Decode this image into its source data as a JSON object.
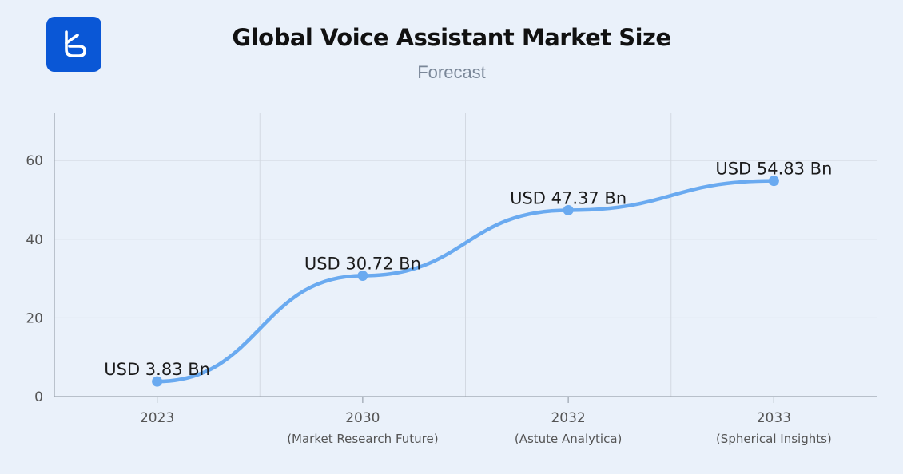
{
  "header": {
    "logo": "logo-b-icon"
  },
  "colors": {
    "background": "#eaf1fa",
    "line": "#6aaaf0",
    "logo": "#0a57d6"
  },
  "chart_data": {
    "type": "line",
    "title": "Global Voice Assistant Market Size",
    "subtitle": "Forecast",
    "categories": [
      "2023",
      "2030",
      "2032",
      "2033"
    ],
    "category_sublabels": [
      "",
      "(Market Research Future)",
      "(Astute Analytica)",
      "(Spherical Insights)"
    ],
    "series": [
      {
        "values": [
          3.83,
          30.72,
          47.37,
          54.83
        ],
        "data_labels": [
          "USD 3.83 Bn",
          "USD 30.72 Bn",
          "USD 47.37 Bn",
          "USD 54.83 Bn"
        ]
      }
    ],
    "yticks": [
      "0",
      "20",
      "40",
      "60"
    ],
    "ylim": [
      0,
      72
    ],
    "grid": true,
    "smooth": true
  }
}
